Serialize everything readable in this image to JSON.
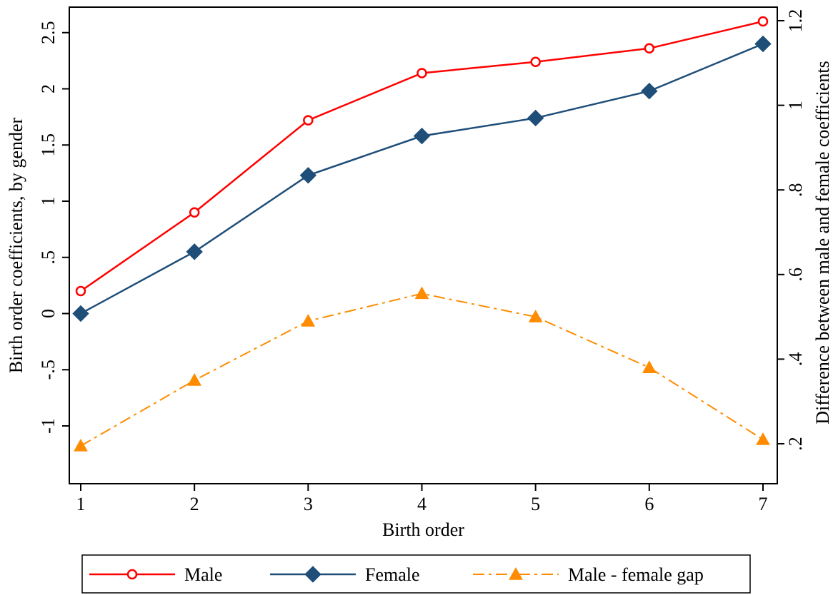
{
  "chart_data": {
    "type": "line",
    "xlabel": "Birth order",
    "ylabel": "Birth order coefficients, by gender",
    "y2label": "Difference between male and female coefficients",
    "x": [
      1,
      2,
      3,
      4,
      5,
      6,
      7
    ],
    "xlim": [
      1,
      7
    ],
    "ylim": [
      -1,
      2.6
    ],
    "y2lim": [
      0.2,
      1.2
    ],
    "xticks": [
      "1",
      "2",
      "3",
      "4",
      "5",
      "6",
      "7"
    ],
    "yticks": [
      {
        "v": -1,
        "label": "-1"
      },
      {
        "v": -0.5,
        "label": "-.5"
      },
      {
        "v": 0,
        "label": "0"
      },
      {
        "v": 0.5,
        "label": ".5"
      },
      {
        "v": 1,
        "label": "1"
      },
      {
        "v": 1.5,
        "label": "1.5"
      },
      {
        "v": 2,
        "label": "2"
      },
      {
        "v": 2.5,
        "label": "2.5"
      }
    ],
    "y2ticks": [
      {
        "v": 0.2,
        "label": ".2"
      },
      {
        "v": 0.4,
        "label": ".4"
      },
      {
        "v": 0.6,
        "label": ".6"
      },
      {
        "v": 0.8,
        "label": ".8"
      },
      {
        "v": 1.0,
        "label": "1"
      },
      {
        "v": 1.2,
        "label": "1.2"
      }
    ],
    "grid": false,
    "legend_position": "bottom",
    "series": [
      {
        "name": "Male",
        "axis": "left",
        "color": "#ff0000",
        "marker": "hollow-circle",
        "dash": "solid",
        "values": [
          0.2,
          0.9,
          1.72,
          2.14,
          2.24,
          2.36,
          2.6
        ]
      },
      {
        "name": "Female",
        "axis": "left",
        "color": "#1f4e79",
        "marker": "diamond",
        "dash": "solid",
        "values": [
          0.0,
          0.55,
          1.23,
          1.58,
          1.74,
          1.98,
          2.4
        ]
      },
      {
        "name": "Male - female gap",
        "axis": "right",
        "color": "#ff8c00",
        "marker": "triangle",
        "dash": "dash-dot",
        "values": [
          0.195,
          0.35,
          0.49,
          0.555,
          0.5,
          0.38,
          0.21
        ]
      }
    ]
  }
}
